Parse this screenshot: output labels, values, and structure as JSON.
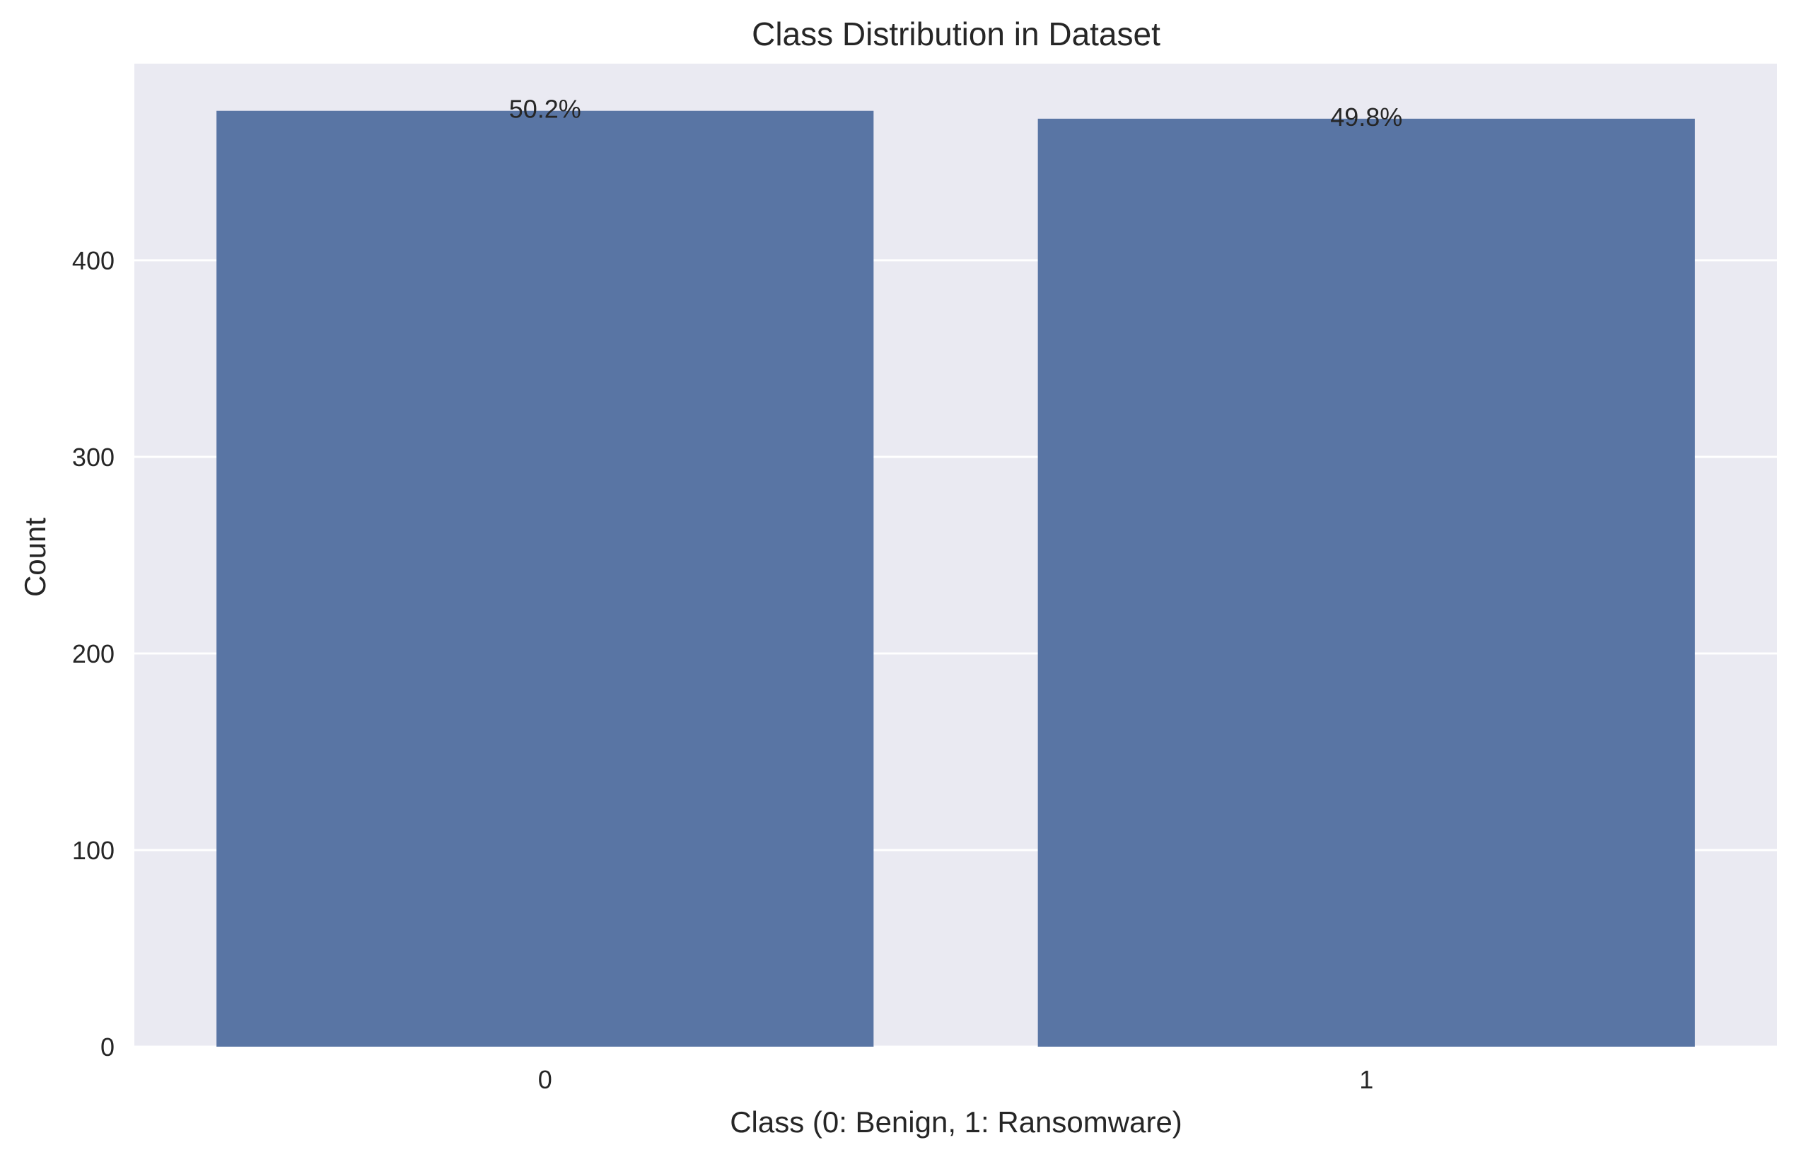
{
  "chart_data": {
    "type": "bar",
    "title": "Class Distribution in Dataset",
    "xlabel": "Class (0: Benign, 1: Ransomware)",
    "ylabel": "Count",
    "categories": [
      "0",
      "1"
    ],
    "values": [
      476,
      472
    ],
    "data_labels": [
      "50.2%",
      "49.8%"
    ],
    "ylim": [
      0,
      500
    ],
    "yticks": [
      0,
      100,
      200,
      300,
      400
    ],
    "grid": true,
    "colors": {
      "bar": "#5975a4",
      "plot_background": "#eaeaf2",
      "grid": "#ffffff",
      "text": "#262626"
    }
  }
}
